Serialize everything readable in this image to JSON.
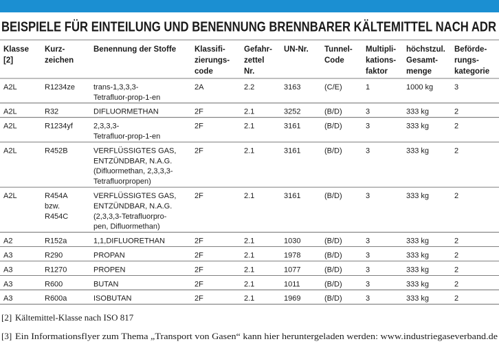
{
  "title": "BEISPIELE FÜR EINTEILUNG UND BENENNUNG BRENNBARER KÄLTEMITTEL NACH ADR",
  "table": {
    "header": [
      [
        "Klasse",
        "[2]"
      ],
      [
        "Kurz-",
        "zeichen"
      ],
      [
        "Benennung der Stoffe"
      ],
      [
        "Klassifi-",
        "zierungs-",
        "code"
      ],
      [
        "Gefahr-",
        "zettel",
        "Nr."
      ],
      [
        "UN-Nr."
      ],
      [
        "Tunnel-",
        "Code"
      ],
      [
        "Multipli-",
        "kations-",
        "faktor"
      ],
      [
        "höchstzul.",
        "Gesamt-",
        "menge"
      ],
      [
        "Beförde-",
        "rungs-",
        "kategorie"
      ]
    ],
    "rows": [
      [
        [
          "A2L"
        ],
        [
          "R1234ze"
        ],
        [
          "trans-1,3,3,3-",
          "Tetrafluor-prop-1-en"
        ],
        [
          "2A"
        ],
        [
          "2.2"
        ],
        [
          "3163"
        ],
        [
          "(C/E)"
        ],
        [
          "1"
        ],
        [
          "1000 kg"
        ],
        [
          "3"
        ]
      ],
      [
        [
          "A2L"
        ],
        [
          "R32"
        ],
        [
          "DIFLUORMETHAN"
        ],
        [
          "2F"
        ],
        [
          "2.1"
        ],
        [
          "3252"
        ],
        [
          "(B/D)"
        ],
        [
          "3"
        ],
        [
          "333 kg"
        ],
        [
          "2"
        ]
      ],
      [
        [
          "A2L"
        ],
        [
          "R1234yf"
        ],
        [
          "2,3,3,3-",
          "Tetrafluor-prop-1-en"
        ],
        [
          "2F"
        ],
        [
          "2.1"
        ],
        [
          "3161"
        ],
        [
          "(B/D)"
        ],
        [
          "3"
        ],
        [
          "333 kg"
        ],
        [
          "2"
        ]
      ],
      [
        [
          "A2L"
        ],
        [
          "R452B"
        ],
        [
          "VERFLÜSSIGTES GAS,",
          "ENTZÜNDBAR, N.A.G.",
          "(Difluormethan, 2,3,3,3-",
          "Tetrafluorpropen)"
        ],
        [
          "2F"
        ],
        [
          "2.1"
        ],
        [
          "3161"
        ],
        [
          "(B/D)"
        ],
        [
          "3"
        ],
        [
          "333 kg"
        ],
        [
          "2"
        ]
      ],
      [
        [
          "A2L"
        ],
        [
          "R454A",
          "bzw.",
          "R454C"
        ],
        [
          "VERFLÜSSIGTES GAS,",
          "ENTZÜNDBAR, N.A.G.",
          "(2,3,3,3-Tetrafluorpro-",
          "pen, Difluormethan)"
        ],
        [
          "2F"
        ],
        [
          "2.1"
        ],
        [
          "3161"
        ],
        [
          "(B/D)"
        ],
        [
          "3"
        ],
        [
          "333 kg"
        ],
        [
          "2"
        ]
      ],
      [
        [
          "A2"
        ],
        [
          "R152a"
        ],
        [
          "1,1,DIFLUORETHAN"
        ],
        [
          "2F"
        ],
        [
          "2.1"
        ],
        [
          "1030"
        ],
        [
          "(B/D)"
        ],
        [
          "3"
        ],
        [
          "333 kg"
        ],
        [
          "2"
        ]
      ],
      [
        [
          "A3"
        ],
        [
          "R290"
        ],
        [
          "PROPAN"
        ],
        [
          "2F"
        ],
        [
          "2.1"
        ],
        [
          "1978"
        ],
        [
          "(B/D)"
        ],
        [
          "3"
        ],
        [
          "333 kg"
        ],
        [
          "2"
        ]
      ],
      [
        [
          "A3"
        ],
        [
          "R1270"
        ],
        [
          "PROPEN"
        ],
        [
          "2F"
        ],
        [
          "2.1"
        ],
        [
          "1077"
        ],
        [
          "(B/D)"
        ],
        [
          "3"
        ],
        [
          "333 kg"
        ],
        [
          "2"
        ]
      ],
      [
        [
          "A3"
        ],
        [
          "R600"
        ],
        [
          "BUTAN"
        ],
        [
          "2F"
        ],
        [
          "2.1"
        ],
        [
          "1011"
        ],
        [
          "(B/D)"
        ],
        [
          "3"
        ],
        [
          "333 kg"
        ],
        [
          "2"
        ]
      ],
      [
        [
          "A3"
        ],
        [
          "R600a"
        ],
        [
          "ISOBUTAN"
        ],
        [
          "2F"
        ],
        [
          "2.1"
        ],
        [
          "1969"
        ],
        [
          "(B/D)"
        ],
        [
          "3"
        ],
        [
          "333 kg"
        ],
        [
          "2"
        ]
      ]
    ]
  },
  "footnotes": [
    {
      "label": "[2]",
      "text": "Kältemittel-Klasse nach ISO 817"
    },
    {
      "label": "[3]",
      "text": "Ein Informationsflyer zum Thema „Transport von Gasen“ kann hier heruntergeladen werden: www.industriegaseverband.de"
    }
  ]
}
